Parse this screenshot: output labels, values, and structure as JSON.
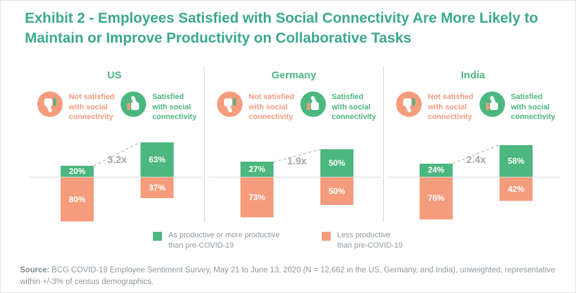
{
  "title": "Exhibit 2 - Employees Satisfied with Social Connectivity Are More Likely to\nMaintain or Improve Productivity on Collaborative Tasks",
  "colors": {
    "title_green": "#3BA98D",
    "positive_green": "#4CB77E",
    "negative_salmon": "#F59C7D",
    "text_gray": "#8F979D",
    "multiplier_gray": "#A7A7A7",
    "axis_gray": "#D8D8D8"
  },
  "panel_labels": {
    "not_satisfied": "Not satisfied\nwith social\nconnectivity",
    "satisfied": "Satisfied\nwith social\nconnectivity"
  },
  "chart_data": {
    "type": "bar",
    "unit": "%",
    "axis": "diverging stacked bars around a zero baseline; green above, salmon below",
    "groups": [
      {
        "country": "US",
        "multiplier": "3.2x",
        "not_satisfied": {
          "productive_pct": 20,
          "less_productive_pct": 80
        },
        "satisfied": {
          "productive_pct": 63,
          "less_productive_pct": 37
        }
      },
      {
        "country": "Germany",
        "multiplier": "1.9x",
        "not_satisfied": {
          "productive_pct": 27,
          "less_productive_pct": 73
        },
        "satisfied": {
          "productive_pct": 50,
          "less_productive_pct": 50
        }
      },
      {
        "country": "India",
        "multiplier": "2.4x",
        "not_satisfied": {
          "productive_pct": 24,
          "less_productive_pct": 76
        },
        "satisfied": {
          "productive_pct": 58,
          "less_productive_pct": 42
        }
      }
    ],
    "series_legend": [
      "As productive or more productive than pre-COVID-19",
      "Less productive than pre-COVID-19"
    ]
  },
  "legend": {
    "items": [
      {
        "line1": "As productive or more productive",
        "line2": "than pre-COVID-19"
      },
      {
        "line1": "Less productive",
        "line2": "than pre-COVID-19"
      }
    ]
  },
  "footer": {
    "source_label": "Source:",
    "source_text": " BCG COVID-19 Employee Sentiment Survey, May 21 to June 13, 2020 (N = 12,662 in the US, Germany, and India), unweighted, representative\nwithin +/-3% of census demographics."
  }
}
